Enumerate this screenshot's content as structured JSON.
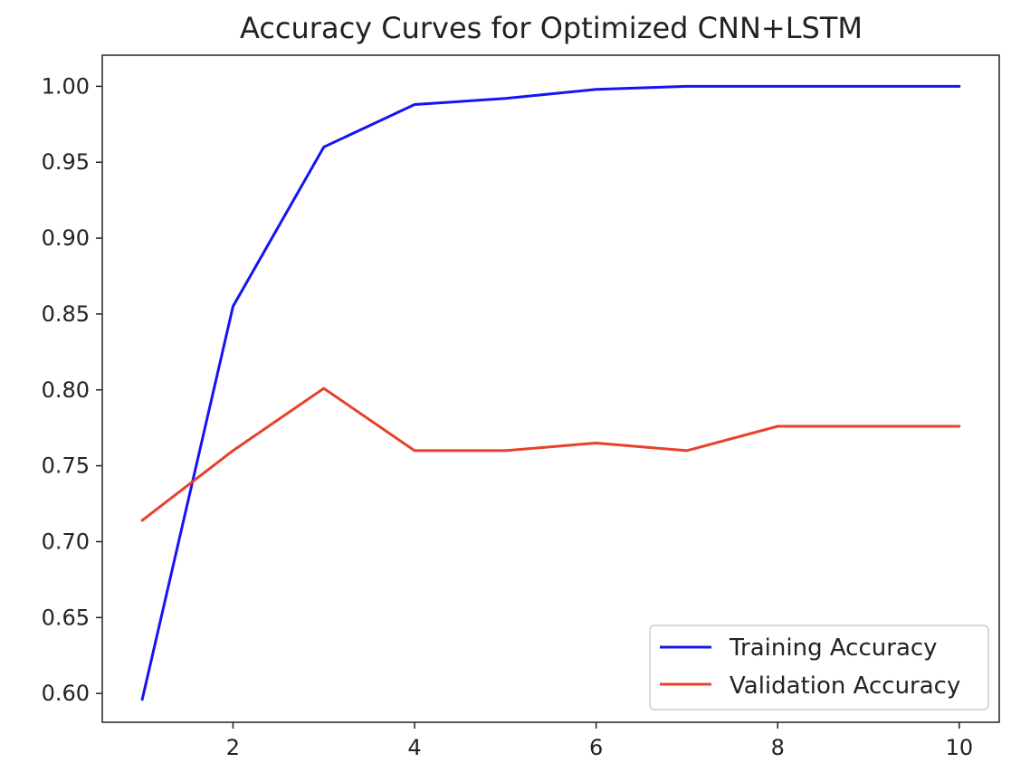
{
  "chart_data": {
    "type": "line",
    "title": "Accuracy Curves for Optimized CNN+LSTM",
    "xlabel": "",
    "ylabel": "",
    "xlim": [
      0.56,
      10.44
    ],
    "ylim": [
      0.581,
      1.0205
    ],
    "xticks": [
      2,
      4,
      6,
      8,
      10
    ],
    "xtick_labels": [
      "2",
      "4",
      "6",
      "8",
      "10"
    ],
    "yticks": [
      0.6,
      0.65,
      0.7,
      0.75,
      0.8,
      0.85,
      0.9,
      0.95,
      1.0
    ],
    "ytick_labels": [
      "0.60",
      "0.65",
      "0.70",
      "0.75",
      "0.80",
      "0.85",
      "0.90",
      "0.95",
      "1.00"
    ],
    "grid": false,
    "legend_position": "bottom-right",
    "x": [
      1,
      2,
      3,
      4,
      5,
      6,
      7,
      8,
      9,
      10
    ],
    "series": [
      {
        "name": "Training Accuracy",
        "color": "#1414f5",
        "values": [
          0.596,
          0.855,
          0.96,
          0.988,
          0.992,
          0.998,
          1.0,
          1.0,
          1.0,
          1.0
        ]
      },
      {
        "name": "Validation Accuracy",
        "color": "#e8412c",
        "values": [
          0.714,
          0.76,
          0.801,
          0.76,
          0.76,
          0.765,
          0.76,
          0.776,
          0.776,
          0.776
        ]
      }
    ]
  }
}
